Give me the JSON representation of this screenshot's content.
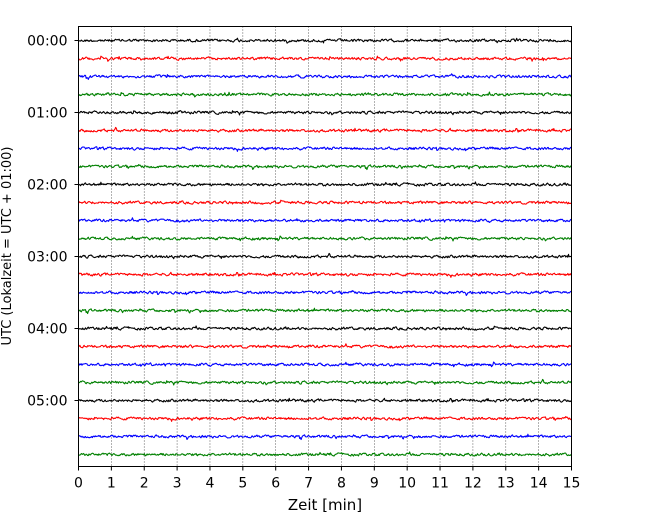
{
  "chart_data": {
    "type": "line",
    "title": "",
    "xlabel": "Zeit  [min]",
    "ylabel": "UTC (Lokalzeit = UTC + 01:00)",
    "xlim": [
      0,
      15
    ],
    "x_ticks": [
      0,
      1,
      2,
      3,
      4,
      5,
      6,
      7,
      8,
      9,
      10,
      11,
      12,
      13,
      14,
      15
    ],
    "x_tick_labels": [
      "0",
      "1",
      "2",
      "3",
      "4",
      "5",
      "6",
      "7",
      "8",
      "9",
      "10",
      "11",
      "12",
      "13",
      "14",
      "15"
    ],
    "y_tick_labels": [
      "00:00",
      "01:00",
      "02:00",
      "03:00",
      "04:00",
      "05:00"
    ],
    "y_ticks_trace_index": [
      0,
      4,
      8,
      12,
      16,
      20
    ],
    "y_direction": "top-to-bottom",
    "grid": "vertical dotted",
    "trace_interval_minutes": 15,
    "trace_colors": [
      "#000000",
      "#ff0000",
      "#0000ff",
      "#008000"
    ],
    "series": [
      {
        "start": "00:00",
        "color": "#000000"
      },
      {
        "start": "00:15",
        "color": "#ff0000"
      },
      {
        "start": "00:30",
        "color": "#0000ff"
      },
      {
        "start": "00:45",
        "color": "#008000"
      },
      {
        "start": "01:00",
        "color": "#000000"
      },
      {
        "start": "01:15",
        "color": "#ff0000"
      },
      {
        "start": "01:30",
        "color": "#0000ff"
      },
      {
        "start": "01:45",
        "color": "#008000"
      },
      {
        "start": "02:00",
        "color": "#000000"
      },
      {
        "start": "02:15",
        "color": "#ff0000"
      },
      {
        "start": "02:30",
        "color": "#0000ff"
      },
      {
        "start": "02:45",
        "color": "#008000"
      },
      {
        "start": "03:00",
        "color": "#000000"
      },
      {
        "start": "03:15",
        "color": "#ff0000"
      },
      {
        "start": "03:30",
        "color": "#0000ff"
      },
      {
        "start": "03:45",
        "color": "#008000"
      },
      {
        "start": "04:00",
        "color": "#000000"
      },
      {
        "start": "04:15",
        "color": "#ff0000"
      },
      {
        "start": "04:30",
        "color": "#0000ff"
      },
      {
        "start": "04:45",
        "color": "#008000"
      },
      {
        "start": "05:00",
        "color": "#000000"
      },
      {
        "start": "05:15",
        "color": "#ff0000"
      },
      {
        "start": "05:30",
        "color": "#0000ff"
      },
      {
        "start": "05:45",
        "color": "#008000"
      }
    ]
  }
}
